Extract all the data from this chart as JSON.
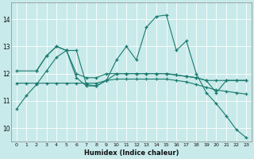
{
  "xlabel": "Humidex (Indice chaleur)",
  "bg_color": "#c8eaea",
  "grid_color": "#ffffff",
  "line_color": "#1a7a6e",
  "xlim": [
    -0.5,
    23.5
  ],
  "ylim": [
    9.5,
    14.6
  ],
  "yticks": [
    10,
    11,
    12,
    13,
    14
  ],
  "xticks": [
    0,
    1,
    2,
    3,
    4,
    5,
    6,
    7,
    8,
    9,
    10,
    11,
    12,
    13,
    14,
    15,
    16,
    17,
    18,
    19,
    20,
    21,
    22,
    23
  ],
  "line1_x": [
    0,
    1,
    2,
    3,
    4,
    5,
    6,
    7,
    8,
    9,
    10,
    11,
    12,
    13,
    14,
    15,
    16,
    17,
    18,
    19,
    20,
    21,
    22,
    23
  ],
  "line1_y": [
    10.7,
    11.2,
    11.6,
    12.1,
    12.6,
    12.85,
    12.85,
    11.6,
    11.55,
    11.75,
    12.5,
    13.0,
    12.5,
    13.7,
    14.1,
    14.15,
    12.85,
    13.2,
    12.0,
    11.3,
    10.9,
    10.45,
    9.95,
    9.65
  ],
  "line2_x": [
    0,
    2,
    3,
    4,
    5,
    6,
    7,
    8,
    9,
    10,
    11,
    12,
    13,
    14,
    15,
    16,
    17,
    18,
    19,
    20,
    21,
    22,
    23
  ],
  "line2_y": [
    12.1,
    12.1,
    12.65,
    13.0,
    12.85,
    12.0,
    11.85,
    11.85,
    12.0,
    12.0,
    12.0,
    12.0,
    12.0,
    12.0,
    12.0,
    11.95,
    11.9,
    11.85,
    11.75,
    11.75,
    11.75,
    11.75,
    11.75
  ],
  "line3_x": [
    2,
    3,
    4,
    5,
    6,
    7,
    8,
    9,
    10,
    11,
    12,
    13,
    14,
    15,
    16,
    17,
    18,
    19,
    20,
    21,
    22,
    23
  ],
  "line3_y": [
    12.1,
    12.65,
    13.0,
    12.85,
    11.85,
    11.55,
    11.55,
    11.75,
    12.0,
    12.0,
    12.0,
    12.0,
    12.0,
    12.0,
    11.95,
    11.9,
    11.85,
    11.75,
    11.3,
    11.75,
    11.75,
    11.75
  ],
  "line4_x": [
    0,
    1,
    2,
    3,
    4,
    5,
    6,
    7,
    8,
    9,
    10,
    11,
    12,
    13,
    14,
    15,
    16,
    17,
    18,
    19,
    20,
    21,
    22,
    23
  ],
  "line4_y": [
    11.65,
    11.65,
    11.65,
    11.65,
    11.65,
    11.65,
    11.65,
    11.65,
    11.65,
    11.75,
    11.8,
    11.8,
    11.8,
    11.8,
    11.8,
    11.8,
    11.75,
    11.7,
    11.6,
    11.5,
    11.4,
    11.35,
    11.3,
    11.25
  ]
}
